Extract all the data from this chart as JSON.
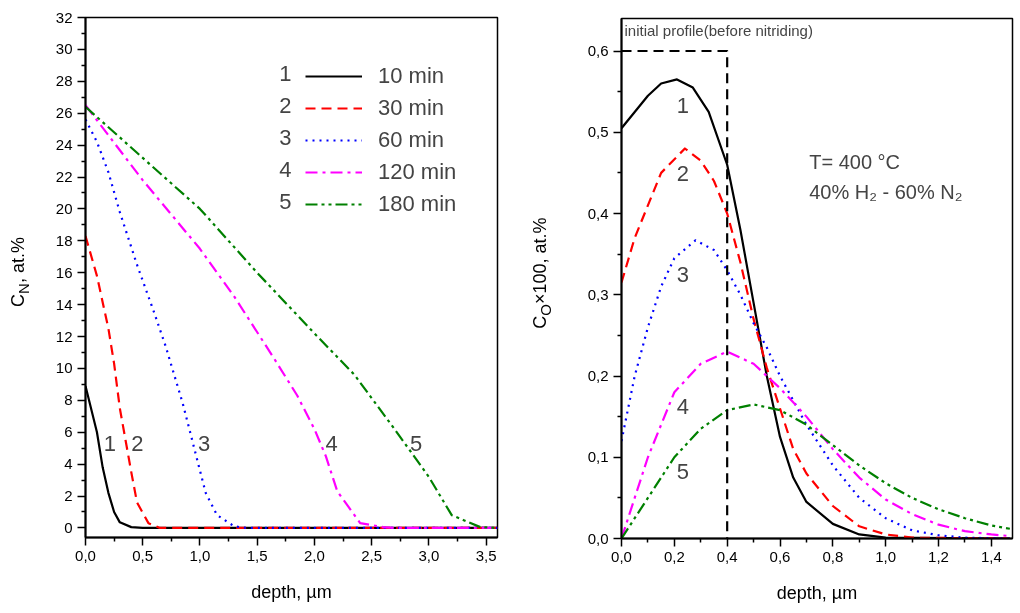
{
  "chart_data": [
    {
      "type": "line",
      "xlabel": "depth, µm",
      "ylabel": "C$_{N}$, at.%",
      "xlim": [
        0,
        3.6
      ],
      "ylim": [
        -0.6,
        32
      ],
      "xticks": [
        {
          "value": 0,
          "label": "0,0"
        },
        {
          "value": 0.5,
          "label": "0,5"
        },
        {
          "value": 1,
          "label": "1,0"
        },
        {
          "value": 1.5,
          "label": "1,5"
        },
        {
          "value": 2,
          "label": "2,0"
        },
        {
          "value": 2.5,
          "label": "2,5"
        },
        {
          "value": 3,
          "label": "3,0"
        },
        {
          "value": 3.5,
          "label": "3,5"
        },
        {
          "value": 0.25,
          "label": null
        },
        {
          "value": 0.75,
          "label": null
        },
        {
          "value": 1.25,
          "label": null
        },
        {
          "value": 1.75,
          "label": null
        },
        {
          "value": 2.25,
          "label": null
        },
        {
          "value": 2.75,
          "label": null
        },
        {
          "value": 3.25,
          "label": null
        }
      ],
      "yticks": [
        0,
        2,
        4,
        6,
        8,
        10,
        12,
        14,
        16,
        18,
        20,
        22,
        24,
        26,
        28,
        30,
        32,
        {
          "value": 1,
          "label": null
        },
        {
          "value": 3,
          "label": null
        },
        {
          "value": 5,
          "label": null
        },
        {
          "value": 7,
          "label": null
        },
        {
          "value": 9,
          "label": null
        },
        {
          "value": 11,
          "label": null
        },
        {
          "value": 13,
          "label": null
        },
        {
          "value": 15,
          "label": null
        },
        {
          "value": 17,
          "label": null
        },
        {
          "value": 19,
          "label": null
        },
        {
          "value": 21,
          "label": null
        },
        {
          "value": 23,
          "label": null
        },
        {
          "value": 25,
          "label": null
        },
        {
          "value": 27,
          "label": null
        },
        {
          "value": 29,
          "label": null
        },
        {
          "value": 31,
          "label": null
        }
      ],
      "grid": false,
      "legend": "top right",
      "series": [
        {
          "name": "10 min",
          "color": "#000000",
          "line_style": "solid",
          "x": [
            0,
            0.1,
            0.15,
            0.2,
            0.25,
            0.3,
            0.4,
            0.5,
            3.6
          ],
          "values": [
            8.9,
            6.0,
            3.8,
            2.2,
            1.0,
            0.35,
            0.05,
            0,
            0
          ]
        },
        {
          "name": "30 min",
          "color": "#ff0000",
          "line_style": "dashed",
          "x": [
            0,
            0.1,
            0.2,
            0.25,
            0.3,
            0.35,
            0.4,
            0.45,
            0.55,
            0.65,
            3.6
          ],
          "values": [
            18.3,
            15.8,
            12.5,
            10.3,
            7.5,
            5.5,
            3.5,
            1.6,
            0.3,
            0,
            0
          ]
        },
        {
          "name": "60 min",
          "color": "#0000ff",
          "line_style": "dotted",
          "x": [
            0,
            0.1,
            0.2,
            0.3,
            0.45,
            0.6,
            0.7,
            0.85,
            0.95,
            1.05,
            1.15,
            1.3,
            1.4,
            3.6
          ],
          "values": [
            25.6,
            24.2,
            22.3,
            19.8,
            16.5,
            13.5,
            11.4,
            7.8,
            5.0,
            2.2,
            0.8,
            0.1,
            0,
            0
          ]
        },
        {
          "name": "120 min",
          "color": "#ff00ff",
          "line_style": "dashdot",
          "x": [
            0,
            0.5,
            1.0,
            1.3,
            1.65,
            1.85,
            2.0,
            2.1,
            2.2,
            2.3,
            2.4,
            2.6,
            2.7,
            3.6
          ],
          "values": [
            26.5,
            21.8,
            17.5,
            14.5,
            10.6,
            8.3,
            6.2,
            4.5,
            2.3,
            1.3,
            0.3,
            0.05,
            0,
            0
          ]
        },
        {
          "name": "180 min",
          "color": "#008000",
          "line_style": "dashdotdot",
          "x": [
            0,
            0.5,
            1.0,
            1.5,
            2.0,
            2.35,
            2.7,
            3.0,
            3.2,
            3.3,
            3.45,
            3.6
          ],
          "values": [
            26.4,
            23.2,
            20.0,
            16.0,
            12.2,
            9.6,
            6.2,
            3.2,
            0.8,
            0.5,
            0.05,
            0
          ]
        }
      ],
      "annotations": [
        "1",
        "2",
        "3",
        "4",
        "5"
      ]
    },
    {
      "type": "line",
      "xlabel": "depth, µm",
      "ylabel": "C$_{O}$×100, at.%",
      "xlim": [
        0,
        1.48
      ],
      "ylim": [
        0,
        0.64
      ],
      "xticks": [
        {
          "value": 0,
          "label": "0,0"
        },
        {
          "value": 0.2,
          "label": "0,2"
        },
        {
          "value": 0.4,
          "label": "0,4"
        },
        {
          "value": 0.6,
          "label": "0,6"
        },
        {
          "value": 0.8,
          "label": "0,8"
        },
        {
          "value": 1.0,
          "label": "1,0"
        },
        {
          "value": 1.2,
          "label": "1,2"
        },
        {
          "value": 1.4,
          "label": "1,4"
        },
        {
          "value": 0.1,
          "label": null
        },
        {
          "value": 0.3,
          "label": null
        },
        {
          "value": 0.5,
          "label": null
        },
        {
          "value": 0.7,
          "label": null
        },
        {
          "value": 0.9,
          "label": null
        },
        {
          "value": 1.1,
          "label": null
        },
        {
          "value": 1.3,
          "label": null
        }
      ],
      "yticks": [
        {
          "value": 0,
          "label": "0,0"
        },
        {
          "value": 0.1,
          "label": "0,1"
        },
        {
          "value": 0.2,
          "label": "0,2"
        },
        {
          "value": 0.3,
          "label": "0,3"
        },
        {
          "value": 0.4,
          "label": "0,4"
        },
        {
          "value": 0.5,
          "label": "0,5"
        },
        {
          "value": 0.6,
          "label": "0,6"
        },
        {
          "value": 0.05,
          "label": null
        },
        {
          "value": 0.15,
          "label": null
        },
        {
          "value": 0.25,
          "label": null
        },
        {
          "value": 0.35,
          "label": null
        },
        {
          "value": 0.45,
          "label": null
        },
        {
          "value": 0.55,
          "label": null
        }
      ],
      "grid": false,
      "series": [
        {
          "name": "1",
          "color": "#000000",
          "line_style": "solid",
          "x": [
            0,
            0.05,
            0.1,
            0.15,
            0.21,
            0.27,
            0.33,
            0.4,
            0.45,
            0.5,
            0.55,
            0.6,
            0.65,
            0.7,
            0.8,
            0.9,
            1.0,
            1.47
          ],
          "values": [
            0.505,
            0.525,
            0.545,
            0.56,
            0.565,
            0.555,
            0.525,
            0.46,
            0.38,
            0.29,
            0.2,
            0.125,
            0.075,
            0.045,
            0.018,
            0.005,
            0.001,
            0
          ]
        },
        {
          "name": "2",
          "color": "#ff0000",
          "line_style": "dashed",
          "x": [
            0,
            0.05,
            0.1,
            0.15,
            0.24,
            0.3,
            0.35,
            0.4,
            0.45,
            0.5,
            0.55,
            0.6,
            0.65,
            0.7,
            0.8,
            0.9,
            1.0,
            1.1,
            1.47
          ],
          "values": [
            0.315,
            0.37,
            0.41,
            0.45,
            0.48,
            0.465,
            0.44,
            0.4,
            0.34,
            0.27,
            0.21,
            0.16,
            0.11,
            0.08,
            0.04,
            0.015,
            0.005,
            0.001,
            0
          ]
        },
        {
          "name": "3",
          "color": "#0000ff",
          "line_style": "dotted",
          "x": [
            0,
            0.05,
            0.1,
            0.15,
            0.2,
            0.28,
            0.35,
            0.4,
            0.45,
            0.5,
            0.55,
            0.6,
            0.7,
            0.8,
            0.9,
            1.0,
            1.1,
            1.2,
            1.3,
            1.47
          ],
          "values": [
            0.12,
            0.2,
            0.26,
            0.31,
            0.345,
            0.367,
            0.355,
            0.33,
            0.3,
            0.265,
            0.235,
            0.2,
            0.14,
            0.09,
            0.05,
            0.025,
            0.01,
            0.004,
            0.001,
            0
          ]
        },
        {
          "name": "4",
          "color": "#ff00ff",
          "line_style": "dashdot",
          "x": [
            0,
            0.05,
            0.1,
            0.15,
            0.2,
            0.3,
            0.4,
            0.5,
            0.6,
            0.7,
            0.8,
            0.9,
            1.0,
            1.1,
            1.2,
            1.3,
            1.4,
            1.47
          ],
          "values": [
            0,
            0.05,
            0.1,
            0.14,
            0.18,
            0.215,
            0.23,
            0.215,
            0.185,
            0.15,
            0.11,
            0.075,
            0.048,
            0.03,
            0.017,
            0.009,
            0.005,
            0.003
          ]
        },
        {
          "name": "5",
          "color": "#008000",
          "line_style": "dashdotdot",
          "x": [
            0,
            0.1,
            0.2,
            0.3,
            0.4,
            0.5,
            0.6,
            0.7,
            0.8,
            0.9,
            1.0,
            1.1,
            1.2,
            1.3,
            1.4,
            1.47
          ],
          "values": [
            0,
            0.05,
            0.1,
            0.135,
            0.158,
            0.165,
            0.158,
            0.14,
            0.115,
            0.09,
            0.068,
            0.05,
            0.036,
            0.025,
            0.016,
            0.012
          ]
        },
        {
          "color": "#000000",
          "line_style": "dashed",
          "x": [
            0,
            0.4,
            0.4
          ],
          "values": [
            0.6,
            0.6,
            0
          ]
        }
      ],
      "annotations": [
        "initial profile(before nitriding)",
        "T= 400 °C",
        "40% H₂ - 60% N₂"
      ]
    }
  ]
}
